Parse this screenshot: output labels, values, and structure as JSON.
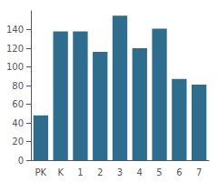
{
  "chart_data": {
    "type": "bar",
    "categories": [
      "PK",
      "K",
      "1",
      "2",
      "3",
      "4",
      "5",
      "6",
      "7"
    ],
    "values": [
      48,
      138,
      138,
      116,
      155,
      120,
      141,
      87,
      81
    ],
    "color": "#2e6d8e",
    "ylim": [
      0,
      160
    ],
    "yticks": [
      0,
      20,
      40,
      60,
      80,
      100,
      120,
      140
    ],
    "grid": false
  }
}
